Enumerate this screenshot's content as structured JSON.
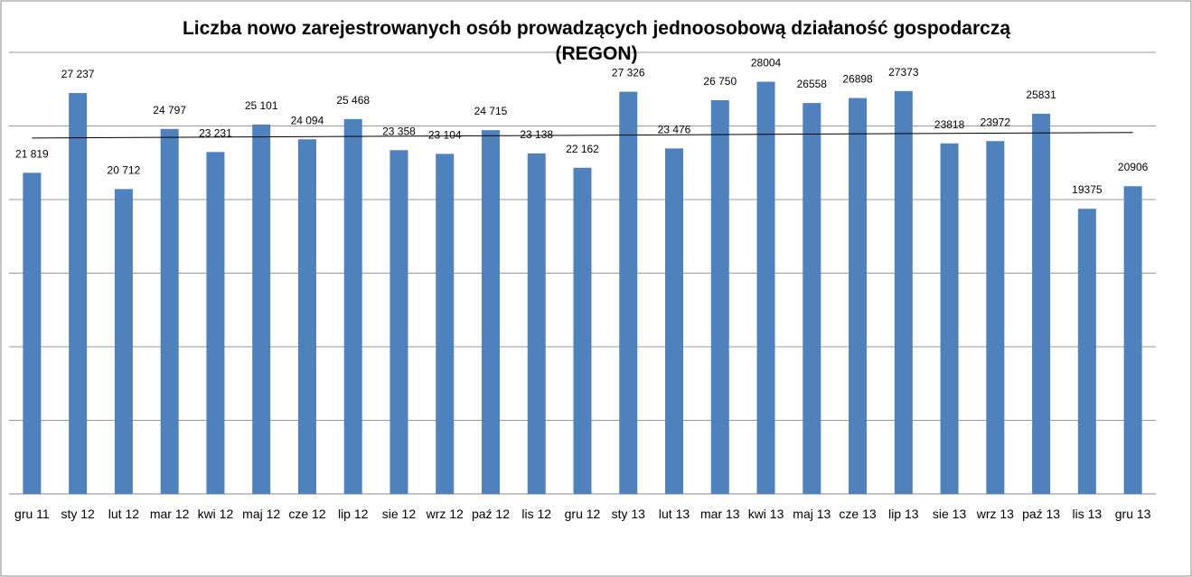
{
  "chart_data": {
    "type": "bar",
    "title": "Liczba nowo zarejestrowanych  osób prowadzących jednoosobową działaność gospodarczą (REGON)",
    "categories": [
      "gru 11",
      "sty 12",
      "lut 12",
      "mar 12",
      "kwi 12",
      "maj 12",
      "cze 12",
      "lip 12",
      "sie 12",
      "wrz 12",
      "paź 12",
      "lis 12",
      "gru 12",
      "sty 13",
      "lut 13",
      "mar 13",
      "kwi 13",
      "maj 13",
      "cze 13",
      "lip 13",
      "sie 13",
      "wrz 13",
      "paź 13",
      "lis 13",
      "gru 13"
    ],
    "values": [
      21819,
      27237,
      20712,
      24797,
      23231,
      25101,
      24094,
      25468,
      23358,
      23104,
      24715,
      23138,
      22162,
      27326,
      23476,
      26750,
      28004,
      26558,
      26898,
      27373,
      23818,
      23972,
      25831,
      19375,
      20906
    ],
    "value_labels": [
      "21 819",
      "27 237",
      "20 712",
      "24 797",
      "23 231",
      "25 101",
      "24 094",
      "25 468",
      "23 358",
      "23 104",
      "24 715",
      "23 138",
      "22 162",
      "27 326",
      "23 476",
      "26 750",
      "28004",
      "26558",
      "26898",
      "27373",
      "23818",
      "23972",
      "25831",
      "19375",
      "20906"
    ],
    "color": "#4f81bd",
    "ylim": [
      0,
      30000
    ],
    "yticks": [
      0,
      5000,
      10000,
      15000,
      20000,
      25000,
      30000
    ],
    "grid": true,
    "trendline": true
  }
}
